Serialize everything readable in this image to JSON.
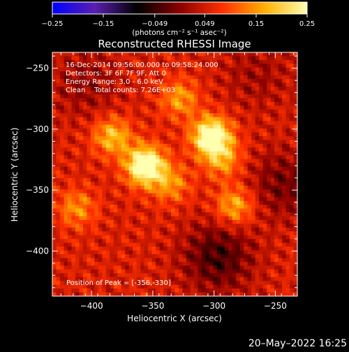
{
  "chart_data": {
    "type": "heatmap",
    "title": "Reconstructed RHESSI Image",
    "xlabel": "Heliocentric X (arcsec)",
    "ylabel": "Heliocentric Y (arcsec)",
    "xlim": [
      -432,
      -232
    ],
    "ylim": [
      -437,
      -237
    ],
    "x_ticks": [
      -400,
      -350,
      -300,
      -250
    ],
    "y_ticks": [
      -250,
      -300,
      -350,
      -400
    ],
    "x_tick_labels": [
      "−400",
      "−350",
      "−300",
      "−250"
    ],
    "y_tick_labels": [
      "−250",
      "−300",
      "−350",
      "−400"
    ],
    "colorbar": {
      "range": [
        -0.25,
        0.25
      ],
      "ticks": [
        -0.25,
        -0.15,
        -0.049,
        0.049,
        0.15,
        0.25
      ],
      "tick_labels": [
        "−0.25",
        "−0.15",
        "−0.049",
        "0.049",
        "0.15",
        "0.25"
      ],
      "unit_label": "(photons cm⁻² s⁻¹ asec⁻²)",
      "colormap": [
        "#0000ff",
        "#5a1fb0",
        "#000000",
        "#8a0000",
        "#ff3000",
        "#ffb000",
        "#ffffb0"
      ]
    },
    "annotations": [
      "16-Dec-2014 09:56:00.000 to 09:58:24.000",
      "Detectors: 3F 6F 7F 9F, Att 0",
      "Energy Range: 3.0 - 6.0 keV",
      "Clean    Total counts: 7.26E+03"
    ],
    "peak_label": "Position of Peak = [-356,-330]",
    "sources": [
      {
        "x": -356,
        "y": -330,
        "amplitude": 0.25
      },
      {
        "x": -302,
        "y": -306,
        "amplitude": 0.24
      },
      {
        "x": -383,
        "y": -306,
        "amplitude": 0.13
      },
      {
        "x": -283,
        "y": -363,
        "amplitude": 0.12
      },
      {
        "x": -293,
        "y": -325,
        "amplitude": 0.1
      },
      {
        "x": -412,
        "y": -365,
        "amplitude": 0.09
      },
      {
        "x": -328,
        "y": -275,
        "amplitude": 0.1
      },
      {
        "x": -335,
        "y": -345,
        "amplitude": 0.09
      }
    ],
    "negative_regions": [
      {
        "x": -297,
        "y": -405,
        "amplitude": -0.1
      },
      {
        "x": -243,
        "y": -345,
        "amplitude": -0.07
      },
      {
        "x": -405,
        "y": -262,
        "amplitude": -0.05
      },
      {
        "x": -265,
        "y": -255,
        "amplitude": -0.04
      }
    ],
    "background_level": 0.055
  },
  "footer": {
    "date_stamp": "20–May–2022 16:25"
  }
}
